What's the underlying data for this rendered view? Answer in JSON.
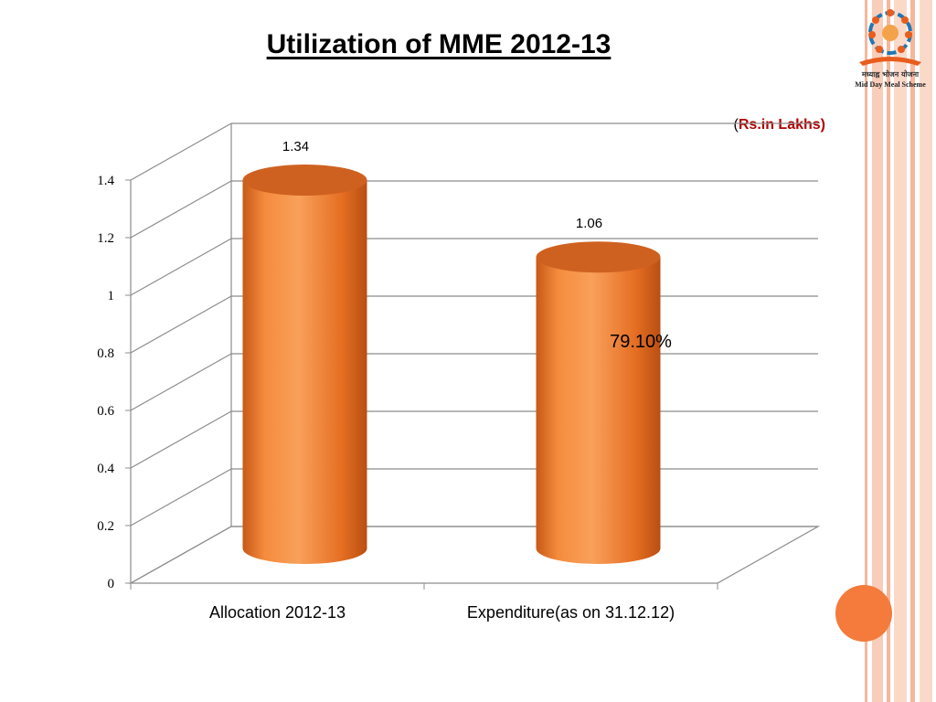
{
  "slide": {
    "title": "Utilization of MME 2012-13",
    "unit_open": "(",
    "unit_text": "Rs.in Lakhs)",
    "annotation": "79.10%"
  },
  "logo": {
    "icon": "mid-day-meal-logo-icon",
    "hindi_text": "मध्याह्न भोजन योजना",
    "english_text": "Mid Day Meal Scheme"
  },
  "chart_data": {
    "type": "bar",
    "style": "3d-cylinder",
    "categories": [
      "Allocation 2012-13",
      "Expenditure(as on 31.12.12)"
    ],
    "values": [
      1.34,
      1.06
    ],
    "data_labels": [
      "1.34",
      "1.06"
    ],
    "title": "Utilization of MME 2012-13",
    "xlabel": "",
    "ylabel": "",
    "ylim": [
      0,
      1.4
    ],
    "yticks": [
      0,
      0.2,
      0.4,
      0.6,
      0.8,
      1,
      1.2,
      1.4
    ],
    "ytick_labels": [
      "0",
      "0.2",
      "0.4",
      "0.6",
      "0.8",
      "1",
      "1.2",
      "1.4"
    ],
    "grid": true,
    "bar_color": "#f47b2c"
  },
  "colors": {
    "bar_fill": "#f47b2c",
    "bar_dark": "#c75a17",
    "accent_red": "#b00000",
    "stripe": "#f7c3ad"
  }
}
